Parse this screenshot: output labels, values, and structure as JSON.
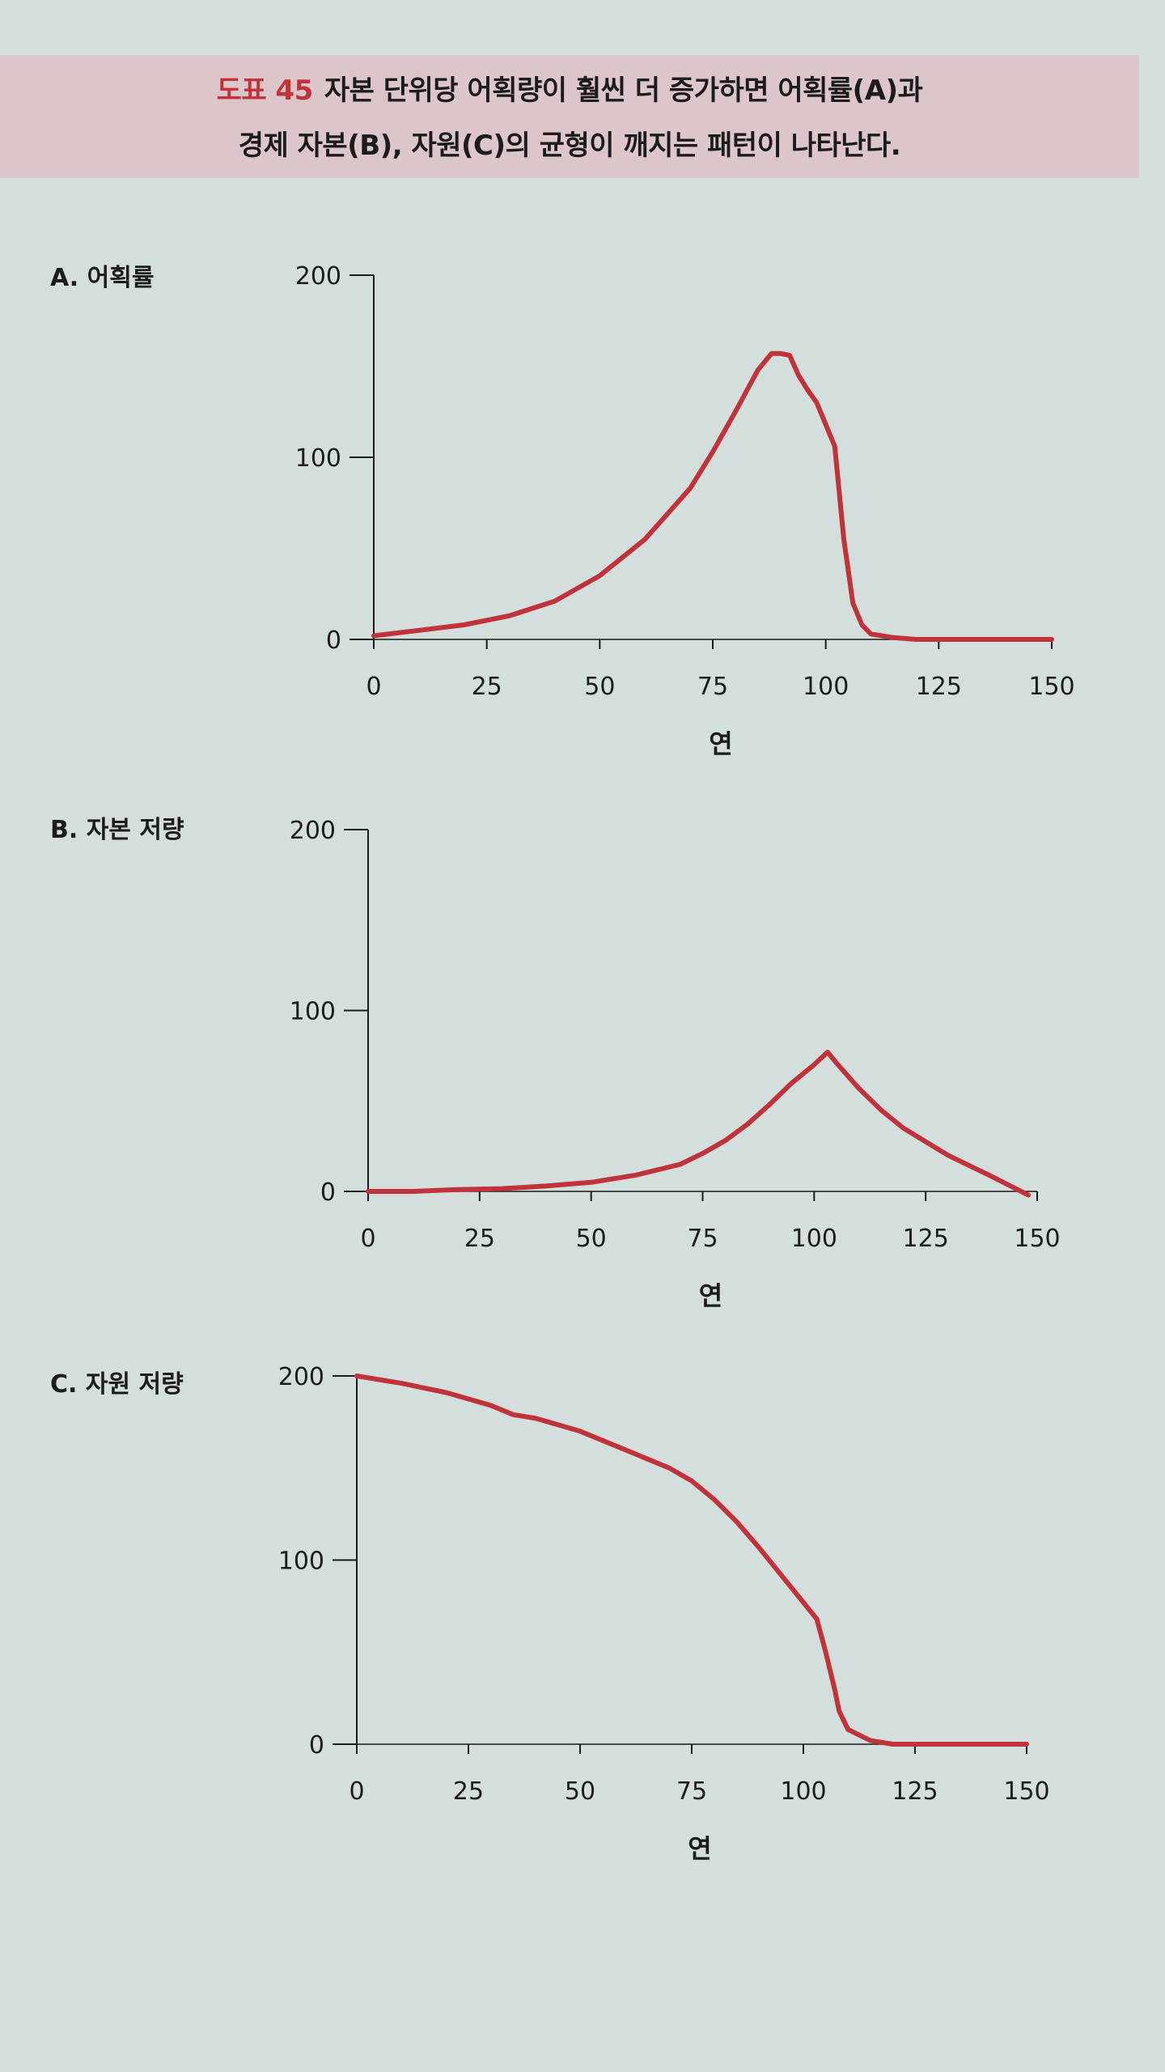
{
  "header": {
    "figure_label": "도표 45",
    "line1": "자본 단위당 어획량이 훨씬 더 증가하면 어획률(A)과",
    "line2": "경제 자본(B), 자원(C)의 균형이 깨지는 패턴이 나타난다."
  },
  "colors": {
    "line": "#c0333b",
    "axis": "#1c1c1c",
    "accent": "#c0333b"
  },
  "chart_data": [
    {
      "type": "line",
      "title": "A. 어획률",
      "xlabel": "연",
      "ylabel": "",
      "xlim": [
        0,
        150
      ],
      "ylim": [
        0,
        200
      ],
      "xticks": [
        0,
        25,
        50,
        75,
        100,
        125,
        150
      ],
      "yticks": [
        0,
        100,
        200
      ],
      "series": [
        {
          "x": [
            0,
            10,
            20,
            30,
            40,
            50,
            60,
            70,
            75,
            80,
            85,
            88,
            90,
            92,
            94,
            96,
            98,
            100,
            102,
            104,
            106,
            108,
            110,
            115,
            120,
            130,
            140,
            150
          ],
          "y": [
            2,
            5,
            8,
            13,
            21,
            35,
            55,
            83,
            103,
            125,
            148,
            157,
            157,
            156,
            145,
            137,
            130,
            118,
            106,
            55,
            20,
            8,
            3,
            1,
            0,
            0,
            0,
            0
          ]
        }
      ]
    },
    {
      "type": "line",
      "title": "B. 자본 저량",
      "xlabel": "연",
      "ylabel": "",
      "xlim": [
        0,
        150
      ],
      "ylim": [
        0,
        200
      ],
      "xticks": [
        0,
        25,
        50,
        75,
        100,
        125,
        150
      ],
      "yticks": [
        0,
        100,
        200
      ],
      "series": [
        {
          "x": [
            0,
            10,
            20,
            30,
            40,
            50,
            60,
            70,
            75,
            80,
            85,
            90,
            95,
            100,
            103,
            105,
            110,
            115,
            120,
            130,
            140,
            148
          ],
          "y": [
            0,
            0,
            1,
            1.5,
            3,
            5,
            9,
            15,
            21,
            28,
            37,
            48,
            60,
            70,
            77,
            71,
            57,
            45,
            35,
            20,
            8,
            -2
          ]
        }
      ]
    },
    {
      "type": "line",
      "title": "C. 자원 저량",
      "xlabel": "연",
      "ylabel": "",
      "xlim": [
        0,
        150
      ],
      "ylim": [
        0,
        200
      ],
      "xticks": [
        0,
        25,
        50,
        75,
        100,
        125,
        150
      ],
      "yticks": [
        0,
        100,
        200
      ],
      "series": [
        {
          "x": [
            0,
            10,
            20,
            30,
            35,
            40,
            50,
            60,
            70,
            75,
            80,
            85,
            90,
            95,
            100,
            103,
            105,
            107,
            108,
            110,
            115,
            120,
            130,
            140,
            150
          ],
          "y": [
            200,
            196,
            191,
            184,
            179,
            177,
            170,
            160,
            150,
            143,
            133,
            121,
            107,
            92,
            77,
            68,
            50,
            30,
            18,
            8,
            2,
            0,
            0,
            0,
            0
          ]
        }
      ]
    }
  ]
}
